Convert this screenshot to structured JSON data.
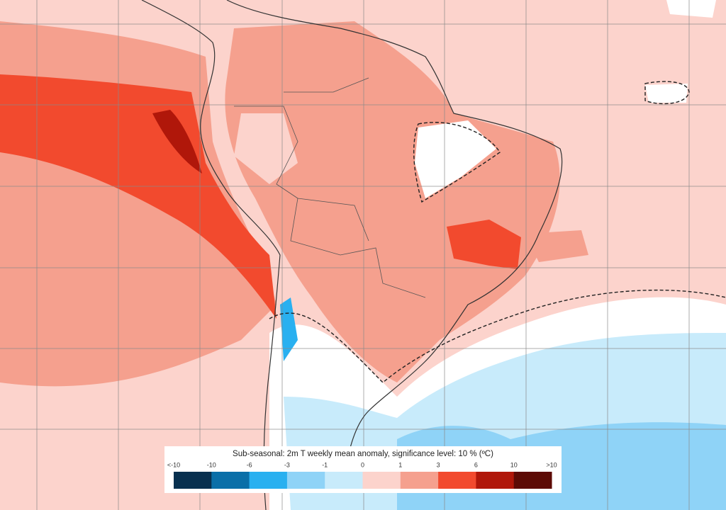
{
  "legend": {
    "title": "Sub-seasonal: 2m T weekly mean anomaly, significance level: 10 % (ºC)",
    "labels": [
      "<-10",
      "-10",
      "-6",
      "-3",
      "-1",
      "0",
      "1",
      "3",
      "6",
      "10",
      ">10"
    ],
    "colors": [
      "#08304f",
      "#0a6fa8",
      "#29b0f0",
      "#8fd3f7",
      "#c8ebfb",
      "#fcd3cc",
      "#f5a08e",
      "#f24a2e",
      "#b0170a",
      "#5c0a05"
    ]
  }
}
